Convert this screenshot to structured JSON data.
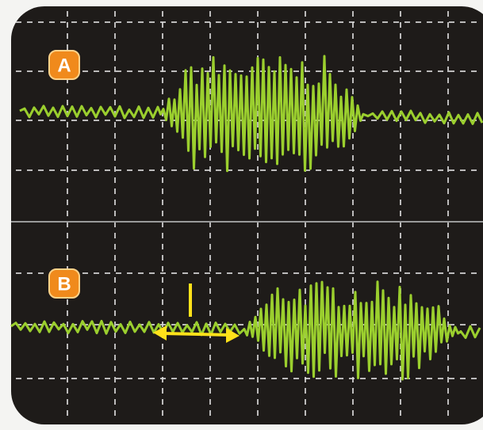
{
  "traces": [
    {
      "label": "A"
    },
    {
      "label": "B"
    }
  ]
}
